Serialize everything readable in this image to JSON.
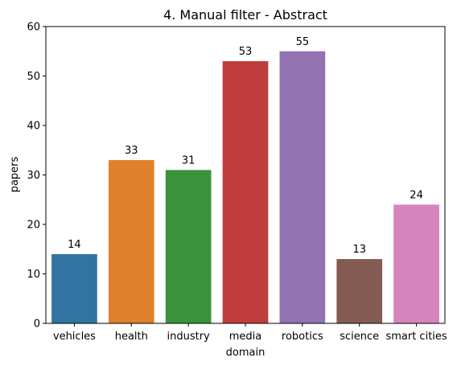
{
  "chart_data": {
    "type": "bar",
    "title": "4. Manual filter - Abstract",
    "xlabel": "domain",
    "ylabel": "papers",
    "ylim": [
      0,
      60
    ],
    "yticks": [
      0,
      10,
      20,
      30,
      40,
      50,
      60
    ],
    "grid": false,
    "categories": [
      "vehicles",
      "health",
      "industry",
      "media",
      "robotics",
      "science",
      "smart cities"
    ],
    "values": [
      14,
      33,
      31,
      53,
      55,
      13,
      24
    ],
    "data_labels": [
      "14",
      "33",
      "31",
      "53",
      "55",
      "13",
      "24"
    ],
    "colors": [
      "#3274a1",
      "#e1812c",
      "#3a923a",
      "#c03d3e",
      "#9372b2",
      "#845b53",
      "#d684bd"
    ]
  }
}
